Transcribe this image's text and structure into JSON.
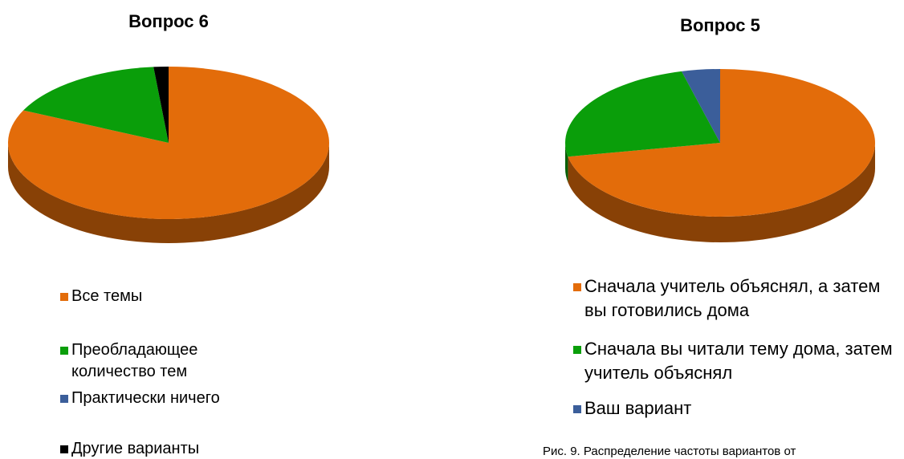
{
  "chart_data": [
    {
      "type": "pie3d",
      "title": "Вопрос 6",
      "categories": [
        "Все темы",
        "Преобладающее количество тем",
        "Практически ничего",
        "Другие варианты"
      ],
      "values": [
        82,
        16.5,
        0,
        1.5
      ],
      "colors": [
        "#e36c0a",
        "#0a9e0a",
        "#3b5e9a",
        "#000000"
      ]
    },
    {
      "type": "pie3d",
      "title": "Вопрос 5",
      "categories": [
        "Сначала учитель объяснял, а затем вы готовились дома",
        "Сначала вы читали тему дома, затем учитель объяснял",
        "Ваш вариант"
      ],
      "values": [
        72,
        24,
        4
      ],
      "colors": [
        "#e36c0a",
        "#0a9e0a",
        "#3b5e9a"
      ]
    }
  ],
  "caption": "Рис. 9. Распределение частоты вариантов от"
}
